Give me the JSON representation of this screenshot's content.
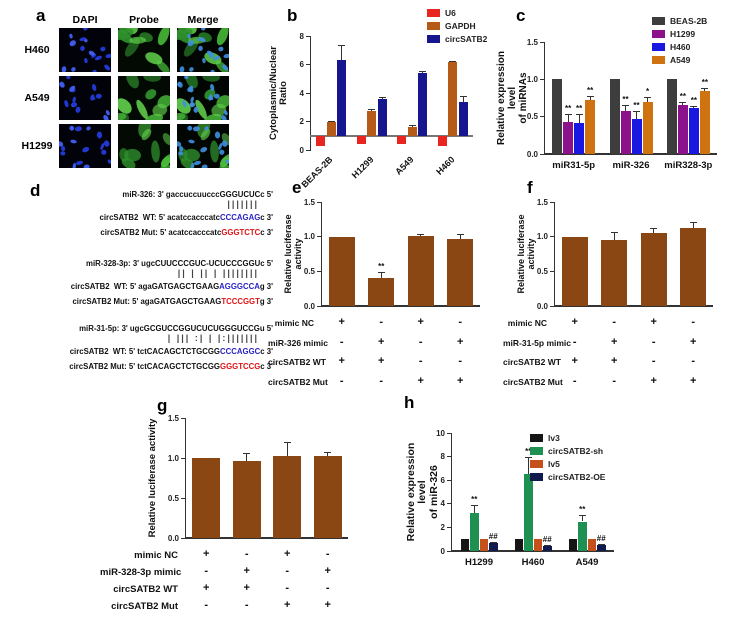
{
  "figure": {
    "panel_labels": {
      "a": "a",
      "b": "b",
      "c": "c",
      "d": "d",
      "e": "e",
      "f": "f",
      "g": "g",
      "h": "h"
    },
    "panel_a": {
      "col_headers": [
        "DAPI",
        "Probe",
        "Merge"
      ],
      "row_labels": [
        "H460",
        "A549",
        "H1299"
      ],
      "dapi_color": "#2138d0",
      "probe_color": "#3aa52f"
    },
    "panel_d": {
      "wt_color": "#2a24c8",
      "mut_color": "#e01414",
      "blocks": [
        {
          "mirna": "miR-326: 3' gaccuccuucccGGGUCUCc 5'",
          "bonds": "|||||||",
          "wt_pre": "circSATB2  WT: 5' acatccacccatc",
          "wt_site": "CCCAGAG",
          "wt_post": "c 3'",
          "mut_pre": "circSATB2 Mut: 5' acatccacccatc",
          "mut_site": "GGGTCTC",
          "mut_post": "c 3'"
        },
        {
          "mirna": "miR-328-3p: 3' ugcCUUCCCGUC-UCUCCCGGUc 5'",
          "bonds": "|| | || | ||||||||",
          "wt_pre": "circSATB2  WT: 5' agaGATGAGCTGAAG",
          "wt_site": "AGGGCCA",
          "wt_post": "g 3'",
          "mut_pre": "circSATB2 Mut: 5' agaGATGAGCTGAAG",
          "mut_site": "TCCCGGT",
          "mut_post": "g 3'"
        },
        {
          "mirna": "miR-31-5p: 3' ugcGCGUCCGGUCUCUGGGUCCGu 5'",
          "bonds": "| ||| :| | |:|||||||",
          "wt_pre": "circSATB2  WT: 5' tctCACAGCTCTGCGG",
          "wt_site": "CCCAGGC",
          "wt_post": "c 3'",
          "mut_pre": "circSATB2 Mut: 5' tctCACAGCTCTGCGG",
          "mut_site": "GGGTCCG",
          "mut_post": "c 3'"
        }
      ]
    }
  },
  "chart_data": [
    {
      "panel": "b",
      "type": "bar",
      "categories": [
        "BEAS-2B",
        "H1299",
        "A549",
        "H460"
      ],
      "series": [
        {
          "name": "U6",
          "color": "#e8261f",
          "values": [
            0.25,
            0.4,
            0.45,
            0.3
          ],
          "errors": [
            0,
            0,
            0,
            0
          ],
          "sig": [
            "",
            "",
            "",
            ""
          ]
        },
        {
          "name": "GAPDH",
          "color": "#b55a17",
          "values": [
            1.95,
            2.75,
            1.6,
            6.2
          ],
          "errors": [
            0.08,
            0.15,
            0.12,
            0.06
          ],
          "sig": [
            "",
            "",
            "",
            ""
          ]
        },
        {
          "name": "circSATB2",
          "color": "#16168e",
          "values": [
            6.35,
            3.6,
            5.4,
            3.4
          ],
          "errors": [
            1.0,
            0.12,
            0.12,
            0.38
          ],
          "sig": [
            "",
            "",
            "",
            ""
          ]
        }
      ],
      "ylabel": "Cytoplasmic/Nuclear Ratio",
      "ylim": [
        0,
        8
      ],
      "yticks": [
        0,
        2,
        4,
        6,
        8
      ],
      "baseline": 1,
      "legend_position": "top-right"
    },
    {
      "panel": "c",
      "type": "bar",
      "categories": [
        "miR31-5p",
        "miR-326",
        "miR328-3p"
      ],
      "series": [
        {
          "name": "BEAS-2B",
          "color": "#3d3d3d",
          "values": [
            1.0,
            1.0,
            1.0
          ],
          "errors": [
            0,
            0,
            0
          ],
          "sig": [
            "",
            "",
            ""
          ]
        },
        {
          "name": "H1299",
          "color": "#8c128c",
          "values": [
            0.43,
            0.58,
            0.65
          ],
          "errors": [
            0.1,
            0.07,
            0.04
          ],
          "sig": [
            "**",
            "**",
            "**"
          ]
        },
        {
          "name": "H460",
          "color": "#1818e0",
          "values": [
            0.42,
            0.47,
            0.61
          ],
          "errors": [
            0.11,
            0.1,
            0.03
          ],
          "sig": [
            "**",
            "**",
            "**"
          ]
        },
        {
          "name": "A549",
          "color": "#cf7310",
          "values": [
            0.72,
            0.69,
            0.85
          ],
          "errors": [
            0.06,
            0.07,
            0.03
          ],
          "sig": [
            "**",
            "*",
            "**"
          ]
        }
      ],
      "ylabel": "Relative expression level\nof miRNAs",
      "ylim": [
        0,
        1.5
      ],
      "yticks": [
        0.0,
        0.5,
        1.0,
        1.5
      ],
      "baseline": 0,
      "legend_position": "top-right"
    },
    {
      "panel": "e",
      "type": "bar",
      "bar_color": "#8a4613",
      "values": [
        1.0,
        0.4,
        1.01,
        0.96
      ],
      "errors": [
        0,
        0.09,
        0.03,
        0.08
      ],
      "sig": [
        "",
        "**",
        "",
        ""
      ],
      "ylabel": "Relative luciferase activity",
      "ylim": [
        0,
        1.5
      ],
      "yticks": [
        0.0,
        0.5,
        1.0,
        1.5
      ],
      "baseline": 0,
      "condition_rows": [
        {
          "label": "mimic NC",
          "values": [
            "+",
            "-",
            "+",
            "-"
          ]
        },
        {
          "label": "miR-326 mimic",
          "values": [
            "-",
            "+",
            "-",
            "+"
          ]
        },
        {
          "label": "circSATB2 WT",
          "values": [
            "+",
            "+",
            "-",
            "-"
          ]
        },
        {
          "label": "circSATB2 Mut",
          "values": [
            "-",
            "-",
            "+",
            "+"
          ]
        }
      ]
    },
    {
      "panel": "f",
      "type": "bar",
      "bar_color": "#8a4613",
      "values": [
        1.0,
        0.95,
        1.05,
        1.12
      ],
      "errors": [
        0,
        0.12,
        0.08,
        0.09
      ],
      "sig": [
        "",
        "",
        "",
        ""
      ],
      "ylabel": "Relative luciferase activity",
      "ylim": [
        0,
        1.5
      ],
      "yticks": [
        0.0,
        0.5,
        1.0,
        1.5
      ],
      "baseline": 0,
      "condition_rows": [
        {
          "label": "mimic NC",
          "values": [
            "+",
            "-",
            "+",
            "-"
          ]
        },
        {
          "label": "miR-31-5p mimic",
          "values": [
            "-",
            "+",
            "-",
            "+"
          ]
        },
        {
          "label": "circSATB2 WT",
          "values": [
            "+",
            "+",
            "-",
            "-"
          ]
        },
        {
          "label": "circSATB2 Mut",
          "values": [
            "-",
            "-",
            "+",
            "+"
          ]
        }
      ]
    },
    {
      "panel": "g",
      "type": "bar",
      "bar_color": "#8a4613",
      "values": [
        1.0,
        0.96,
        1.03,
        1.02
      ],
      "errors": [
        0,
        0.1,
        0.17,
        0.05
      ],
      "sig": [
        "",
        "",
        "",
        ""
      ],
      "ylabel": "Relative luciferase activity",
      "ylim": [
        0,
        1.5
      ],
      "yticks": [
        0.0,
        0.5,
        1.0,
        1.5
      ],
      "baseline": 0,
      "condition_rows": [
        {
          "label": "mimic NC",
          "values": [
            "+",
            "-",
            "+",
            "-"
          ]
        },
        {
          "label": "miR-328-3p mimic",
          "values": [
            "-",
            "+",
            "-",
            "+"
          ]
        },
        {
          "label": "circSATB2 WT",
          "values": [
            "+",
            "+",
            "-",
            "-"
          ]
        },
        {
          "label": "circSATB2 Mut",
          "values": [
            "-",
            "-",
            "+",
            "+"
          ]
        }
      ]
    },
    {
      "panel": "h",
      "type": "bar",
      "categories": [
        "H1299",
        "H460",
        "A549"
      ],
      "series": [
        {
          "name": "lv3",
          "color": "#151515",
          "values": [
            1.0,
            1.0,
            1.0
          ],
          "errors": [
            0,
            0,
            0
          ],
          "sig": [
            "",
            "",
            ""
          ]
        },
        {
          "name": "circSATB2-sh",
          "color": "#1e9152",
          "values": [
            3.2,
            6.5,
            2.5
          ],
          "errors": [
            0.7,
            1.5,
            0.55
          ],
          "sig": [
            "**",
            "**",
            "**"
          ]
        },
        {
          "name": "lv5",
          "color": "#c4511b",
          "values": [
            1.0,
            1.0,
            1.0
          ],
          "errors": [
            0,
            0,
            0
          ],
          "sig": [
            "",
            "",
            ""
          ]
        },
        {
          "name": "circSATB2-OE",
          "color": "#111a4f",
          "values": [
            0.65,
            0.4,
            0.5
          ],
          "errors": [
            0.12,
            0.08,
            0.1
          ],
          "sig": [
            "##",
            "##",
            "##"
          ]
        }
      ],
      "ylabel": "Relative expression level\nof miR-326",
      "ylim": [
        0,
        10
      ],
      "yticks": [
        0,
        2,
        4,
        6,
        8,
        10
      ],
      "baseline": 0,
      "legend_position": "top-right"
    }
  ]
}
